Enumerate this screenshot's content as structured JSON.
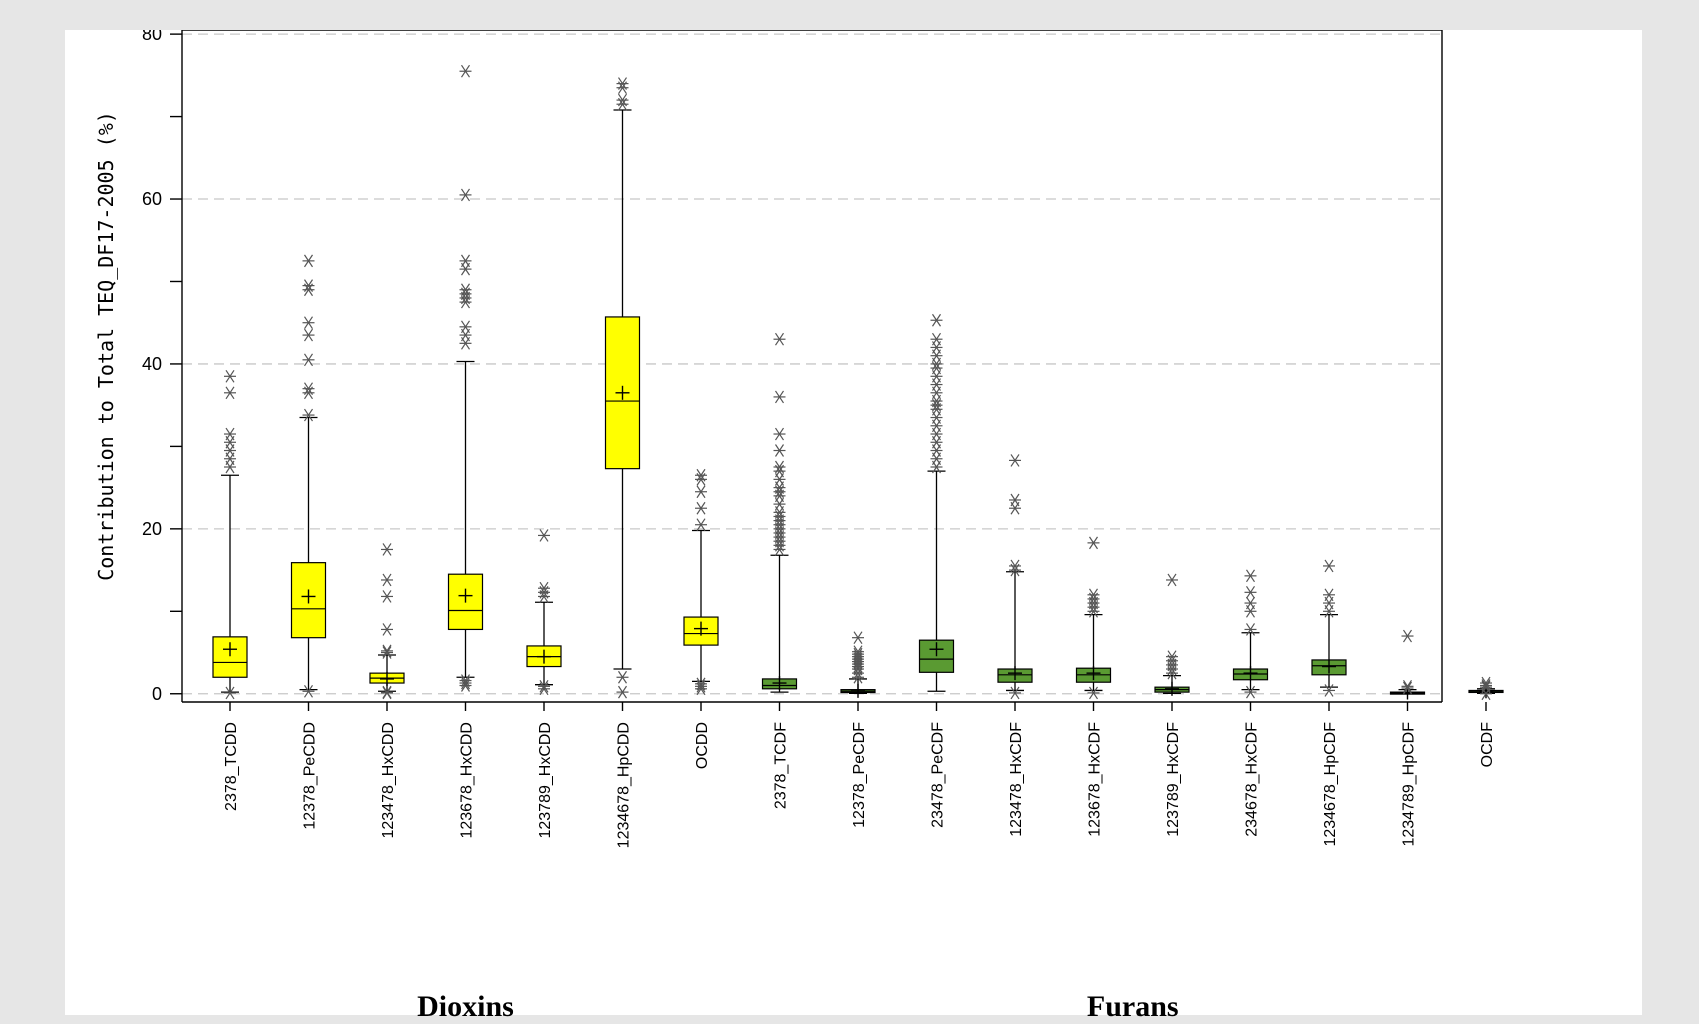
{
  "chart_data": {
    "type": "box",
    "ylabel": "Contribution to Total TEQ_DF17-2005 (%)",
    "ylim": [
      -1,
      80.5
    ],
    "yticks": [
      0,
      20,
      40,
      60,
      80
    ],
    "grid": "horizontal-dashed",
    "groups": [
      {
        "label": "Dioxins",
        "color": "#ffff00",
        "range": [
          0,
          6
        ]
      },
      {
        "label": "Furans",
        "color": "#5a9a32",
        "range": [
          7,
          16
        ]
      }
    ],
    "categories": [
      "2378_TCDD",
      "12378_PeCDD",
      "123478_HxCDD",
      "123678_HxCDD",
      "123789_HxCDD",
      "1234678_HpCDD",
      "OCDD",
      "2378_TCDF",
      "12378_PeCDF",
      "23478_PeCDF",
      "123478_HxCDF",
      "123678_HxCDF",
      "123789_HxCDF",
      "234678_HxCDF",
      "1234678_HpCDF",
      "1234789_HpCDF",
      "OCDF"
    ],
    "boxes": [
      {
        "min": 0.2,
        "q1": 2.0,
        "median": 3.8,
        "q3": 6.9,
        "max": 26.5,
        "mean": 5.4,
        "outliers": [
          27.5,
          28.5,
          29.5,
          30.5,
          31.5,
          36.5,
          38.5,
          0.1
        ]
      },
      {
        "min": 0.5,
        "q1": 6.8,
        "median": 10.3,
        "q3": 15.9,
        "max": 33.5,
        "mean": 11.8,
        "outliers": [
          33.8,
          36.5,
          37.0,
          40.5,
          43.5,
          45.0,
          49.0,
          49.5,
          52.5,
          0.3
        ]
      },
      {
        "min": 0.3,
        "q1": 1.3,
        "median": 1.9,
        "q3": 2.5,
        "max": 4.7,
        "mean": 1.8,
        "outliers": [
          5.0,
          5.2,
          7.8,
          11.8,
          13.8,
          17.5,
          0.1,
          0.2
        ]
      },
      {
        "min": 2.0,
        "q1": 7.8,
        "median": 10.1,
        "q3": 14.5,
        "max": 40.3,
        "mean": 11.9,
        "outliers": [
          42.5,
          43.5,
          44.5,
          47.5,
          48.0,
          48.5,
          49.0,
          51.5,
          52.5,
          60.5,
          75.5,
          1.0,
          1.3,
          1.6
        ]
      },
      {
        "min": 1.1,
        "q1": 3.3,
        "median": 4.5,
        "q3": 5.8,
        "max": 11.1,
        "mean": 4.5,
        "outliers": [
          11.8,
          12.3,
          12.8,
          19.2,
          0.6,
          0.9
        ]
      },
      {
        "min": 3.0,
        "q1": 27.3,
        "median": 35.5,
        "q3": 45.7,
        "max": 70.8,
        "mean": 36.5,
        "outliers": [
          71.5,
          72.0,
          73.5,
          74.0,
          0.2,
          2.0
        ]
      },
      {
        "min": 1.5,
        "q1": 5.9,
        "median": 7.3,
        "q3": 9.3,
        "max": 19.8,
        "mean": 7.9,
        "outliers": [
          20.5,
          22.5,
          24.5,
          26.0,
          26.5,
          0.6,
          0.9,
          1.2
        ]
      },
      {
        "min": 0.2,
        "q1": 0.6,
        "median": 1.0,
        "q3": 1.8,
        "max": 16.8,
        "mean": 1.3,
        "outliers": [
          17.5,
          18.0,
          18.5,
          19.0,
          19.5,
          20.0,
          20.5,
          21.0,
          21.5,
          22.0,
          23.0,
          24.0,
          24.5,
          25.0,
          26.0,
          27.0,
          27.5,
          29.5,
          31.5,
          36.0,
          43.0
        ]
      },
      {
        "min": 0.05,
        "q1": 0.15,
        "median": 0.3,
        "q3": 0.5,
        "max": 1.8,
        "mean": 0.35,
        "outliers": [
          2.0,
          2.5,
          3.0,
          3.3,
          3.6,
          3.9,
          4.2,
          4.5,
          4.8,
          5.1,
          6.8
        ]
      },
      {
        "min": 0.3,
        "q1": 2.6,
        "median": 4.2,
        "q3": 6.5,
        "max": 27.0,
        "mean": 5.4,
        "outliers": [
          27.5,
          28.5,
          29.5,
          30.5,
          31.5,
          32.5,
          33.5,
          34.5,
          35.0,
          35.5,
          36.5,
          37.5,
          38.5,
          39.5,
          40.0,
          41.0,
          42.0,
          43.0,
          45.3
        ]
      },
      {
        "min": 0.4,
        "q1": 1.4,
        "median": 2.3,
        "q3": 3.0,
        "max": 14.8,
        "mean": 2.5,
        "outliers": [
          15.0,
          15.5,
          22.5,
          23.5,
          28.3,
          0.1
        ]
      },
      {
        "min": 0.4,
        "q1": 1.4,
        "median": 2.3,
        "q3": 3.1,
        "max": 9.6,
        "mean": 2.5,
        "outliers": [
          10.0,
          10.5,
          11.0,
          11.5,
          12.0,
          18.3,
          0.1
        ]
      },
      {
        "min": 0.05,
        "q1": 0.2,
        "median": 0.5,
        "q3": 0.8,
        "max": 2.2,
        "mean": 0.6,
        "outliers": [
          2.5,
          3.0,
          3.5,
          4.0,
          4.5,
          13.8
        ]
      },
      {
        "min": 0.5,
        "q1": 1.7,
        "median": 2.4,
        "q3": 3.0,
        "max": 7.4,
        "mean": 2.5,
        "outliers": [
          7.8,
          10.0,
          11.0,
          12.3,
          14.3,
          0.2
        ]
      },
      {
        "min": 0.8,
        "q1": 2.3,
        "median": 3.4,
        "q3": 4.1,
        "max": 9.6,
        "mean": 3.3,
        "outliers": [
          10.0,
          11.0,
          12.0,
          15.5,
          0.4
        ]
      },
      {
        "min": 0.02,
        "q1": 0.05,
        "median": 0.1,
        "q3": 0.2,
        "max": 0.5,
        "mean": 0.15,
        "outliers": [
          0.7,
          0.9,
          7.0
        ]
      },
      {
        "min": 0.05,
        "q1": 0.2,
        "median": 0.3,
        "q3": 0.4,
        "max": 0.6,
        "mean": 0.3,
        "outliers": [
          0.8,
          1.0,
          1.3,
          0.0
        ]
      }
    ]
  }
}
